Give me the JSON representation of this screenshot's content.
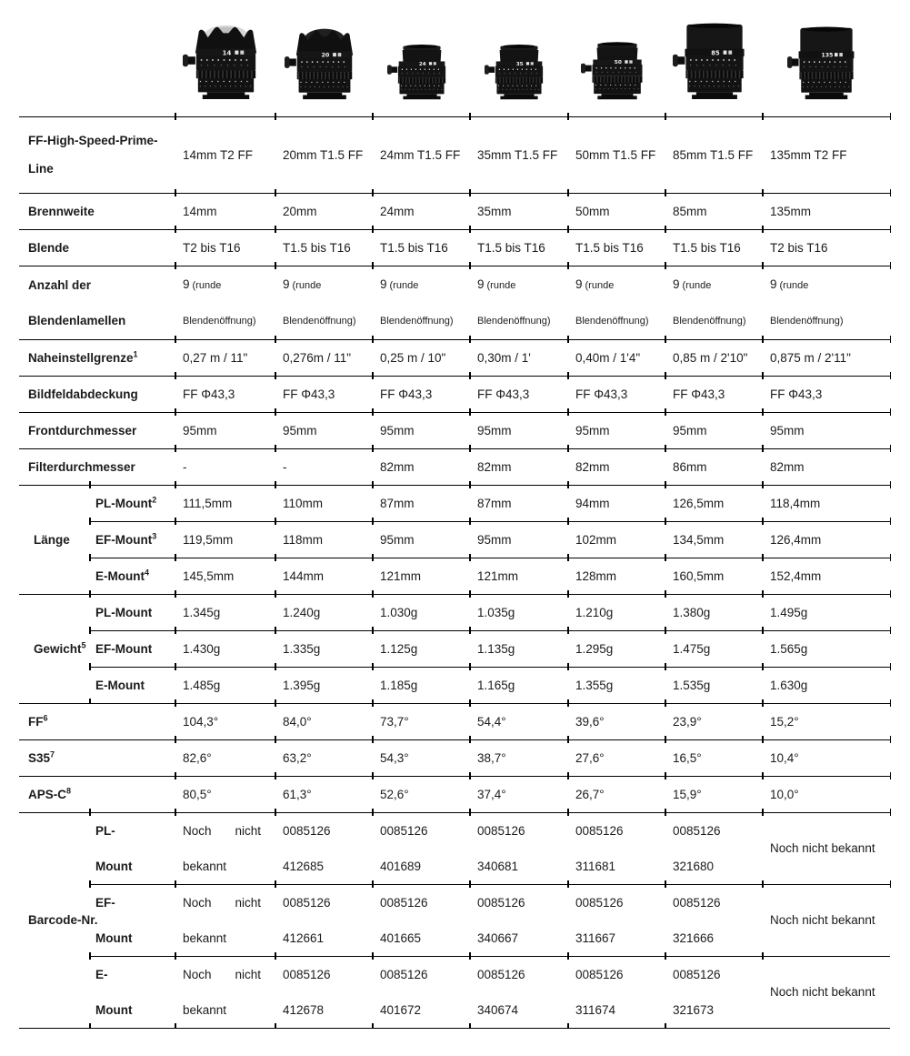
{
  "colors": {
    "text": "#1b1b1b",
    "rule": "#000000",
    "lens_body": "#141414",
    "lens_marks": "#e8e8e8"
  },
  "lenses": [
    {
      "name": "14mm T2 FF",
      "num": "14",
      "style": "petal",
      "dome": true,
      "w": 95,
      "h": 86
    },
    {
      "name": "20mm T1.5 FF",
      "num": "20",
      "style": "petal",
      "dome": false,
      "w": 88,
      "h": 82
    },
    {
      "name": "24mm T1.5 FF",
      "num": "24",
      "style": "compact",
      "w": 76,
      "h": 66
    },
    {
      "name": "35mm T1.5 FF",
      "num": "35",
      "style": "compact",
      "w": 76,
      "h": 66
    },
    {
      "name": "50mm T1.5 FF",
      "num": "50",
      "style": "compact",
      "w": 80,
      "h": 69
    },
    {
      "name": "85mm T1.5 FF",
      "num": "85",
      "style": "tall",
      "w": 92,
      "h": 86
    },
    {
      "name": "135mm T2 FF",
      "num": "135",
      "style": "tall",
      "w": 86,
      "h": 82
    }
  ],
  "header": {
    "line1": "FF-High-Speed-Prime-",
    "line2": "Line",
    "values": [
      "14mm T2 FF",
      "20mm T1.5 FF",
      "24mm T1.5 FF",
      "35mm T1.5 FF",
      "50mm T1.5 FF",
      "85mm T1.5 FF",
      "135mm T2 FF"
    ]
  },
  "rows": {
    "brennweite": {
      "label": "Brennweite",
      "values": [
        "14mm",
        "20mm",
        "24mm",
        "35mm",
        "50mm",
        "85mm",
        "135mm"
      ]
    },
    "blende": {
      "label": "Blende",
      "values": [
        "T2 bis T16",
        "T1.5 bis T16",
        "T1.5 bis T16",
        "T1.5 bis T16",
        "T1.5 bis T16",
        "T1.5 bis T16",
        "T2 bis T16"
      ]
    },
    "lamellen": {
      "label1": "Anzahl der",
      "label2": "Blendenlamellen",
      "num": "9",
      "note1": "(runde",
      "note2": "Blendenöffnung)"
    },
    "nahe": {
      "label": "Naheinstellgrenze",
      "sup": "1",
      "values": [
        "0,27 m / 11\"",
        "0,276m / 11\"",
        "0,25 m / 10\"",
        "0,30m / 1'",
        "0,40m / 1'4\"",
        "0,85 m / 2'10\"",
        "0,875 m / 2'11\""
      ]
    },
    "bildfeld": {
      "label": "Bildfeldabdeckung",
      "values": [
        "FF Φ43,3",
        "FF Φ43,3",
        "FF Φ43,3",
        "FF Φ43,3",
        "FF Φ43,3",
        "FF Φ43,3",
        "FF Φ43,3"
      ]
    },
    "front": {
      "label": "Frontdurchmesser",
      "values": [
        "95mm",
        "95mm",
        "95mm",
        "95mm",
        "95mm",
        "95mm",
        "95mm"
      ]
    },
    "filter": {
      "label": "Filterdurchmesser",
      "values": [
        "-",
        "-",
        "82mm",
        "82mm",
        "82mm",
        "86mm",
        "82mm"
      ]
    },
    "laenge": {
      "label": "Länge",
      "subs": [
        {
          "label": "PL-Mount",
          "sup": "2",
          "values": [
            "111,5mm",
            "110mm",
            "87mm",
            "87mm",
            "94mm",
            "126,5mm",
            "118,4mm"
          ]
        },
        {
          "label": "EF-Mount",
          "sup": "3",
          "values": [
            "119,5mm",
            "118mm",
            "95mm",
            "95mm",
            "102mm",
            "134,5mm",
            "126,4mm"
          ]
        },
        {
          "label": "E-Mount",
          "sup": "4",
          "values": [
            "145,5mm",
            "144mm",
            "121mm",
            "121mm",
            "128mm",
            "160,5mm",
            "152,4mm"
          ]
        }
      ]
    },
    "gewicht": {
      "label": "Gewicht",
      "sup": "5",
      "subs": [
        {
          "label": "PL-Mount",
          "values": [
            "1.345g",
            "1.240g",
            "1.030g",
            "1.035g",
            "1.210g",
            "1.380g",
            "1.495g"
          ]
        },
        {
          "label": "EF-Mount",
          "values": [
            "1.430g",
            "1.335g",
            "1.125g",
            "1.135g",
            "1.295g",
            "1.475g",
            "1.565g"
          ]
        },
        {
          "label": "E-Mount",
          "values": [
            "1.485g",
            "1.395g",
            "1.185g",
            "1.165g",
            "1.355g",
            "1.535g",
            "1.630g"
          ]
        }
      ]
    },
    "ff": {
      "label": "FF",
      "sup": "6",
      "values": [
        "104,3°",
        "84,0°",
        "73,7°",
        "54,4°",
        "39,6°",
        "23,9°",
        "15,2°"
      ]
    },
    "s35": {
      "label": "S35",
      "sup": "7",
      "values": [
        "82,6°",
        "63,2°",
        "54,3°",
        "38,7°",
        "27,6°",
        "16,5°",
        "10,4°"
      ]
    },
    "apsc": {
      "label": "APS-C",
      "sup": "8",
      "values": [
        "80,5°",
        "61,3°",
        "52,6°",
        "37,4°",
        "26,7°",
        "15,9°",
        "10,0°"
      ]
    },
    "barcode": {
      "label": "Barcode-Nr.",
      "na": {
        "w1": "Noch",
        "w2": "nicht",
        "line2": "bekannt",
        "single": "Noch nicht bekannt"
      },
      "subs": [
        {
          "label1": "PL-",
          "label2": "Mount",
          "codes": [
            [
              "0085126",
              "412685"
            ],
            [
              "0085126",
              "401689"
            ],
            [
              "0085126",
              "340681"
            ],
            [
              "0085126",
              "311681"
            ],
            [
              "0085126",
              "321680"
            ]
          ]
        },
        {
          "label1": "EF-",
          "label2": "Mount",
          "codes": [
            [
              "0085126",
              "412661"
            ],
            [
              "0085126",
              "401665"
            ],
            [
              "0085126",
              "340667"
            ],
            [
              "0085126",
              "311667"
            ],
            [
              "0085126",
              "321666"
            ]
          ]
        },
        {
          "label1": "E-",
          "label2": "Mount",
          "codes": [
            [
              "0085126",
              "412678"
            ],
            [
              "0085126",
              "401672"
            ],
            [
              "0085126",
              "340674"
            ],
            [
              "0085126",
              "311674"
            ],
            [
              "0085126",
              "321673"
            ]
          ]
        }
      ]
    }
  }
}
